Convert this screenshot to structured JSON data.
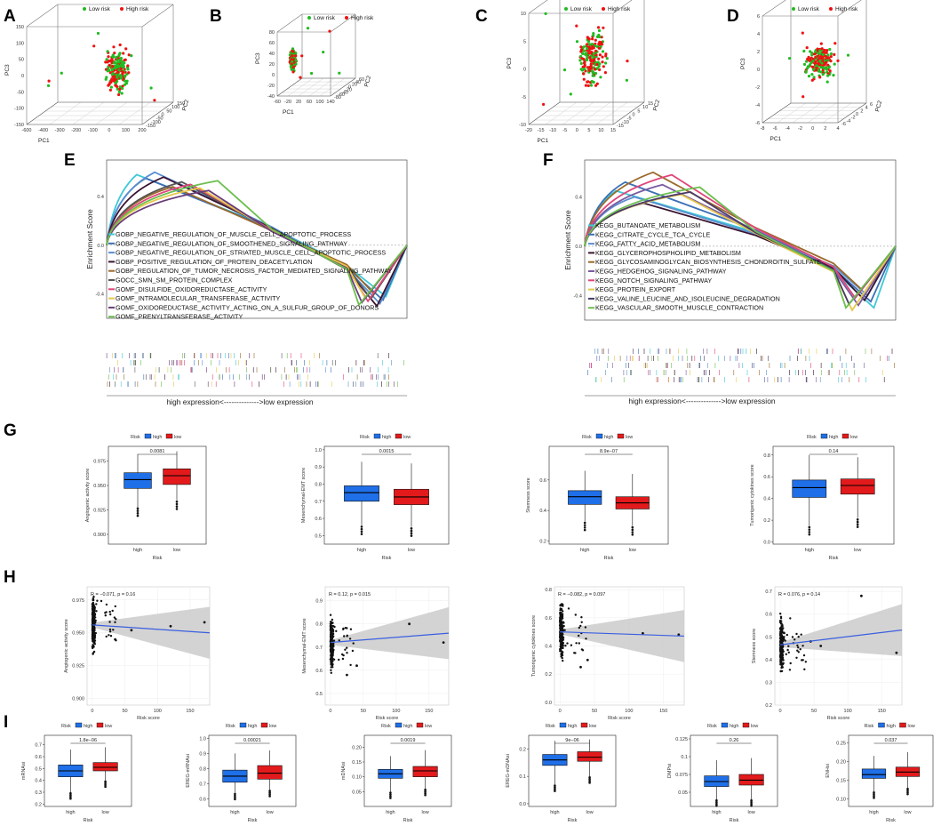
{
  "panel_labels": [
    "A",
    "B",
    "C",
    "D",
    "E",
    "F",
    "G",
    "H",
    "I"
  ],
  "colors": {
    "low": "#22bb22",
    "high": "#ee1111",
    "box_high": "#1f6fe8",
    "box_low": "#e31a1c",
    "trend": "#3a5fe0",
    "ci": "#c8c8c8"
  },
  "chart_data": [
    {
      "id": "A",
      "type": "scatter3d",
      "legend": [
        "Low risk",
        "High risk"
      ],
      "axes": {
        "x": "PC1",
        "y": "PC2",
        "z": "PC3"
      },
      "x_ticks": [
        "-600",
        "-400",
        "-300",
        "-200",
        "-100",
        "0",
        "100",
        "200"
      ],
      "y_ticks": [
        "-150",
        "-100",
        "-50",
        "0",
        "50",
        "100",
        "150"
      ],
      "z_ticks": [
        "-150",
        "-100",
        "-50",
        "0",
        "50",
        "100",
        "150"
      ]
    },
    {
      "id": "B",
      "type": "scatter3d",
      "legend": [
        "Low risk",
        "High risk"
      ],
      "axes": {
        "x": "PC1",
        "y": "PC2",
        "z": "PC3"
      },
      "x_ticks": [
        "-60",
        "-20",
        "20",
        "60",
        "100",
        "140"
      ],
      "y_ticks": [
        "-80",
        "-60",
        "-40",
        "-20",
        "0",
        "20",
        "40",
        "60"
      ],
      "z_ticks": [
        "-40",
        "-20",
        "0",
        "20",
        "40",
        "60",
        "80"
      ]
    },
    {
      "id": "C",
      "type": "scatter3d",
      "legend": [
        "Low risk",
        "High risk"
      ],
      "axes": {
        "x": "PC1",
        "y": "PC2",
        "z": "PC3"
      },
      "x_ticks": [
        "-20",
        "-15",
        "-10",
        "-5",
        "0",
        "5",
        "10",
        "15"
      ],
      "y_ticks": [
        "-15",
        "-10",
        "-5",
        "0",
        "5",
        "10",
        "15"
      ],
      "z_ticks": [
        "-10",
        "-5",
        "0",
        "5",
        "10"
      ]
    },
    {
      "id": "D",
      "type": "scatter3d",
      "legend": [
        "Low risk",
        "High risk"
      ],
      "axes": {
        "x": "PC1",
        "y": "PC2",
        "z": "PC3"
      },
      "x_ticks": [
        "-8",
        "-6",
        "-4",
        "-2",
        "0",
        "2",
        "4"
      ],
      "y_ticks": [
        "-6",
        "-4",
        "-2",
        "0",
        "2",
        "4",
        "6"
      ],
      "z_ticks": [
        "-6",
        "-4",
        "-2",
        "0",
        "2",
        "4",
        "6"
      ]
    },
    {
      "id": "E",
      "type": "line",
      "ylabel": "Enrichment Score",
      "xlabel": "high expression<-------------->low expression",
      "y_ticks": [
        "0.4",
        "0.0",
        "-0.4"
      ],
      "terms": [
        "GOBP_NEGATIVE_REGULATION_OF_MUSCLE_CELL_APOPTOTIC_PROCESS",
        "GOBP_NEGATIVE_REGULATION_OF_SMOOTHENED_SIGNALING_PATHWAY",
        "GOBP_NEGATIVE_REGULATION_OF_STRIATED_MUSCLE_CELL_APOPTOTIC_PROCESS",
        "GOBP_POSITIVE_REGULATION_OF_PROTEIN_DEACETYLATION",
        "GOBP_REGULATION_OF_TUMOR_NECROSIS_FACTOR_MEDIATED_SIGNALING_PATHWAY",
        "GOCC_SMN_SM_PROTEIN_COMPLEX",
        "GOMF_DISULFIDE_OXIDOREDUCTASE_ACTIVITY",
        "GOMF_INTRAMOLECULAR_TRANSFERASE_ACTIVITY",
        "GOMF_OXIDOREDUCTASE_ACTIVITY_ACTING_ON_A_SULFUR_GROUP_OF_DONORS",
        "GOMF_PRENYLTRANSFERASE_ACTIVITY"
      ],
      "term_colors": [
        "#3fc8d8",
        "#3b6fb6",
        "#5a8fd0",
        "#3a1430",
        "#9a6a2a",
        "#555555",
        "#e0457a",
        "#e6c84a",
        "#6a3d7a",
        "#6bbf4e"
      ],
      "peaks": [
        0.58,
        0.55,
        0.6,
        0.56,
        0.48,
        0.52,
        0.5,
        0.47,
        0.45,
        0.53
      ],
      "troughs": [
        -0.42,
        -0.45,
        -0.48,
        -0.5,
        -0.4,
        -0.44,
        -0.46,
        -0.43,
        -0.47,
        -0.49
      ]
    },
    {
      "id": "F",
      "type": "line",
      "ylabel": "Enrichment Score",
      "xlabel": "high expression<-------------->low expression",
      "y_ticks": [
        "0.4",
        "0.0",
        "-0.4"
      ],
      "terms": [
        "KEGG_BUTANOATE_METABOLISM",
        "KEGG_CITRATE_CYCLE_TCA_CYCLE",
        "KEGG_FATTY_ACID_METABOLISM",
        "KEGG_GLYCEROPHOSPHOLIPID_METABOLISM",
        "KEGG_GLYCOSAMINOGLYCAN_BIOSYNTHESIS_CHONDROITIN_SULFATE",
        "KEGG_HEDGEHOG_SIGNALING_PATHWAY",
        "KEGG_NOTCH_SIGNALING_PATHWAY",
        "KEGG_PROTEIN_EXPORT",
        "KEGG_VALINE_LEUCINE_AND_ISOLEUCINE_DEGRADATION",
        "KEGG_VASCULAR_SMOOTH_MUSCLE_CONTRACTION"
      ],
      "term_colors": [
        "#3fc8d8",
        "#3b6fb6",
        "#5a8fd0",
        "#3a1430",
        "#9a6a2a",
        "#7a5aa0",
        "#e0457a",
        "#e6c84a",
        "#4a3a6a",
        "#6bbf4e"
      ],
      "peaks": [
        0.45,
        0.52,
        0.4,
        0.35,
        0.6,
        0.5,
        0.58,
        0.42,
        0.44,
        0.48
      ],
      "troughs": [
        -0.5,
        -0.45,
        -0.4,
        -0.44,
        -0.35,
        -0.48,
        -0.42,
        -0.52,
        -0.47,
        -0.5
      ]
    },
    {
      "id": "G",
      "type": "box",
      "legend_title": "Risk",
      "legend": [
        "high",
        "low"
      ],
      "xlabel": "Risk",
      "categories": [
        "high",
        "low"
      ],
      "plots": [
        {
          "ylabel": "Angiogenic activity score",
          "pvalue": "0.0081",
          "ylim": [
            0.89,
            0.99
          ],
          "ticks": [
            0.9,
            0.925,
            0.95,
            0.975
          ],
          "tick_labels": [
            "0.900",
            "0.925",
            "0.950",
            "0.975"
          ],
          "boxes": [
            {
              "min": 0.928,
              "q1": 0.947,
              "median": 0.956,
              "q3": 0.963,
              "max": 0.982
            },
            {
              "min": 0.935,
              "q1": 0.951,
              "median": 0.96,
              "q3": 0.967,
              "max": 0.985
            }
          ]
        },
        {
          "ylabel": "Mesenchymal-EMT score",
          "pvalue": "0.0015",
          "ylim": [
            0.45,
            1.02
          ],
          "ticks": [
            0.5,
            0.6,
            0.7,
            0.8,
            0.9,
            1.0
          ],
          "tick_labels": [
            "0.5",
            "0.6",
            "0.7",
            "0.8",
            "0.9",
            "1.0"
          ],
          "boxes": [
            {
              "min": 0.56,
              "q1": 0.7,
              "median": 0.75,
              "q3": 0.79,
              "max": 0.93
            },
            {
              "min": 0.55,
              "q1": 0.68,
              "median": 0.725,
              "q3": 0.77,
              "max": 0.92
            }
          ]
        },
        {
          "ylabel": "Stemness score",
          "pvalue": "8.9e−07",
          "ylim": [
            0.18,
            0.82
          ],
          "ticks": [
            0.2,
            0.4,
            0.6
          ],
          "tick_labels": [
            "0.2",
            "0.4",
            "0.6"
          ],
          "boxes": [
            {
              "min": 0.33,
              "q1": 0.44,
              "median": 0.49,
              "q3": 0.53,
              "max": 0.66
            },
            {
              "min": 0.3,
              "q1": 0.41,
              "median": 0.45,
              "q3": 0.49,
              "max": 0.64
            }
          ]
        },
        {
          "ylabel": "Tumorigenic cytokines score",
          "pvalue": "0.14",
          "ylim": [
            -0.02,
            0.88
          ],
          "ticks": [
            0.0,
            0.2,
            0.4,
            0.6,
            0.8
          ],
          "tick_labels": [
            "0.0",
            "0.2",
            "0.4",
            "0.6",
            "0.8"
          ],
          "boxes": [
            {
              "min": 0.15,
              "q1": 0.41,
              "median": 0.5,
              "q3": 0.57,
              "max": 0.8
            },
            {
              "min": 0.22,
              "q1": 0.44,
              "median": 0.52,
              "q3": 0.58,
              "max": 0.78
            }
          ]
        }
      ]
    },
    {
      "id": "H",
      "type": "scatter",
      "xlabel": "Risk score",
      "x_ticks": [
        0,
        50,
        100,
        150
      ],
      "plots": [
        {
          "ylabel": "Angiogenic activity score",
          "stat": "R = −0.071, p = 0.16",
          "ylim": [
            0.895,
            0.985
          ],
          "ticks": [
            0.9,
            0.925,
            0.95,
            0.975
          ],
          "tick_labels": [
            "0.900",
            "0.925",
            "0.950",
            "0.975"
          ],
          "fit": [
            0.956,
            0.95
          ],
          "outliers": [
            [
              120,
              0.955
            ],
            [
              172,
              0.958
            ],
            [
              35,
              0.945
            ],
            [
              60,
              0.952
            ]
          ]
        },
        {
          "ylabel": "Mesenchymal-EMT score",
          "stat": "R = 0.12, p = 0.015",
          "ylim": [
            0.45,
            0.96
          ],
          "ticks": [
            0.5,
            0.6,
            0.7,
            0.8,
            0.9
          ],
          "tick_labels": [
            "0.5",
            "0.6",
            "0.7",
            "0.8",
            "0.9"
          ],
          "fit": [
            0.72,
            0.76
          ],
          "outliers": [
            [
              120,
              0.8
            ],
            [
              172,
              0.72
            ],
            [
              40,
              0.62
            ],
            [
              25,
              0.58
            ]
          ]
        },
        {
          "ylabel": "Tumorigenic cytokines score",
          "stat": "R = −0.082, p = 0.097",
          "ylim": [
            -0.02,
            0.82
          ],
          "ticks": [
            0.0,
            0.2,
            0.4,
            0.6,
            0.8
          ],
          "tick_labels": [
            "0.0",
            "0.2",
            "0.4",
            "0.6",
            "0.8"
          ],
          "fit": [
            0.5,
            0.47
          ],
          "outliers": [
            [
              120,
              0.49
            ],
            [
              172,
              0.48
            ],
            [
              40,
              0.3
            ],
            [
              30,
              0.25
            ]
          ]
        },
        {
          "ylabel": "Stemness score",
          "stat": "R = 0.076, p = 0.14",
          "ylim": [
            0.2,
            0.72
          ],
          "ticks": [
            0.2,
            0.3,
            0.4,
            0.5,
            0.6,
            0.7
          ],
          "tick_labels": [
            "0.2",
            "0.3",
            "0.4",
            "0.5",
            "0.6",
            "0.7"
          ],
          "fit": [
            0.465,
            0.53
          ],
          "outliers": [
            [
              120,
              0.68
            ],
            [
              172,
              0.43
            ],
            [
              45,
              0.48
            ],
            [
              60,
              0.46
            ]
          ]
        }
      ]
    },
    {
      "id": "I",
      "type": "box",
      "legend_title": "Risk",
      "legend": [
        "high",
        "low"
      ],
      "xlabel": "Risk",
      "categories": [
        "high",
        "low"
      ],
      "plots": [
        {
          "ylabel": "mRNAsi",
          "pvalue": "1.8e−06",
          "ylim": [
            0.18,
            0.78
          ],
          "ticks": [
            0.2,
            0.3,
            0.4,
            0.5,
            0.6,
            0.7
          ],
          "tick_labels": [
            "0.2",
            "0.3",
            "0.4",
            "0.5",
            "0.6",
            "0.7"
          ],
          "boxes": [
            {
              "min": 0.3,
              "q1": 0.43,
              "median": 0.48,
              "q3": 0.53,
              "max": 0.66
            },
            {
              "min": 0.4,
              "q1": 0.48,
              "median": 0.51,
              "q3": 0.55,
              "max": 0.68
            }
          ]
        },
        {
          "ylabel": "EREG-mRNAsi",
          "pvalue": "0.00021",
          "ylim": [
            0.55,
            1.02
          ],
          "ticks": [
            0.6,
            0.7,
            0.8,
            0.9,
            1.0
          ],
          "tick_labels": [
            "0.6",
            "0.7",
            "0.8",
            "0.9",
            "1.0"
          ],
          "boxes": [
            {
              "min": 0.64,
              "q1": 0.71,
              "median": 0.75,
              "q3": 0.79,
              "max": 0.9
            },
            {
              "min": 0.66,
              "q1": 0.73,
              "median": 0.77,
              "q3": 0.82,
              "max": 0.92
            }
          ]
        },
        {
          "ylabel": "mDNAsi",
          "pvalue": "0.0019",
          "ylim": [
            0.0,
            0.24
          ],
          "ticks": [
            0.05,
            0.1,
            0.15,
            0.2
          ],
          "tick_labels": [
            "0.05",
            "0.10",
            "0.15",
            "0.20"
          ],
          "boxes": [
            {
              "min": 0.05,
              "q1": 0.095,
              "median": 0.11,
              "q3": 0.125,
              "max": 0.17
            },
            {
              "min": 0.06,
              "q1": 0.1,
              "median": 0.12,
              "q3": 0.135,
              "max": 0.19
            }
          ]
        },
        {
          "ylabel": "EREG-mDNAsi",
          "pvalue": "9e−06",
          "ylim": [
            -0.01,
            0.25
          ],
          "ticks": [
            0.0,
            0.1,
            0.2
          ],
          "tick_labels": [
            "0.0",
            "0.1",
            "0.2"
          ],
          "boxes": [
            {
              "min": 0.07,
              "q1": 0.14,
              "median": 0.16,
              "q3": 0.18,
              "max": 0.23
            },
            {
              "min": 0.1,
              "q1": 0.155,
              "median": 0.17,
              "q3": 0.19,
              "max": 0.235
            }
          ]
        },
        {
          "ylabel": "DMPsi",
          "pvalue": "0.26",
          "ylim": [
            0.03,
            0.13
          ],
          "ticks": [
            0.05,
            0.075,
            0.1,
            0.125
          ],
          "tick_labels": [
            "0.05",
            "0.075",
            "0.1",
            "0.125"
          ],
          "boxes": [
            {
              "min": 0.04,
              "q1": 0.058,
              "median": 0.065,
              "q3": 0.073,
              "max": 0.095
            },
            {
              "min": 0.04,
              "q1": 0.06,
              "median": 0.067,
              "q3": 0.075,
              "max": 0.098
            }
          ]
        },
        {
          "ylabel": "ENHsi",
          "pvalue": "0.037",
          "ylim": [
            0.08,
            0.27
          ],
          "ticks": [
            0.1,
            0.15,
            0.2,
            0.25
          ],
          "tick_labels": [
            "0.10",
            "0.15",
            "0.20",
            "0.25"
          ],
          "boxes": [
            {
              "min": 0.12,
              "q1": 0.155,
              "median": 0.165,
              "q3": 0.18,
              "max": 0.215
            },
            {
              "min": 0.13,
              "q1": 0.16,
              "median": 0.172,
              "q3": 0.185,
              "max": 0.225
            }
          ]
        }
      ]
    }
  ]
}
